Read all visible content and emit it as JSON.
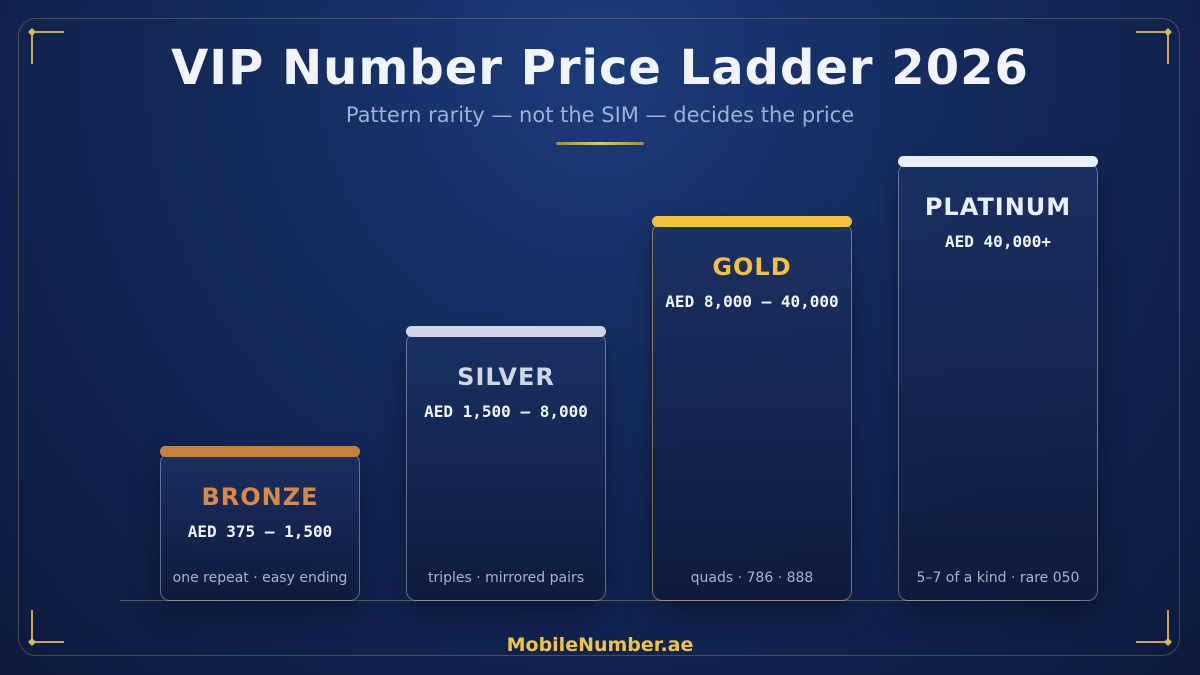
{
  "header": {
    "title": "VIP Number Price Ladder 2026",
    "subtitle": "Pattern rarity — not the SIM — decides the price"
  },
  "tiers": [
    {
      "name": "BRONZE",
      "price": "AED 375 – 1,500",
      "note": "one repeat · easy ending",
      "accent": "#c8813c",
      "name_color": "#d8894a"
    },
    {
      "name": "SILVER",
      "price": "AED 1,500 – 8,000",
      "note": "triples · mirrored pairs",
      "accent": "#d0d6e4",
      "name_color": "#ced6e8"
    },
    {
      "name": "GOLD",
      "price": "AED 8,000 – 40,000",
      "note": "quads · 786 · 888",
      "accent": "#f2c23d",
      "name_color": "#f2c23d"
    },
    {
      "name": "PLATINUM",
      "price": "AED 40,000+",
      "note": "5–7 of a kind · rare 050",
      "accent": "#e8eefa",
      "name_color": "#e8eefa"
    }
  ],
  "footer": {
    "brand": "MobileNumber.ae"
  }
}
